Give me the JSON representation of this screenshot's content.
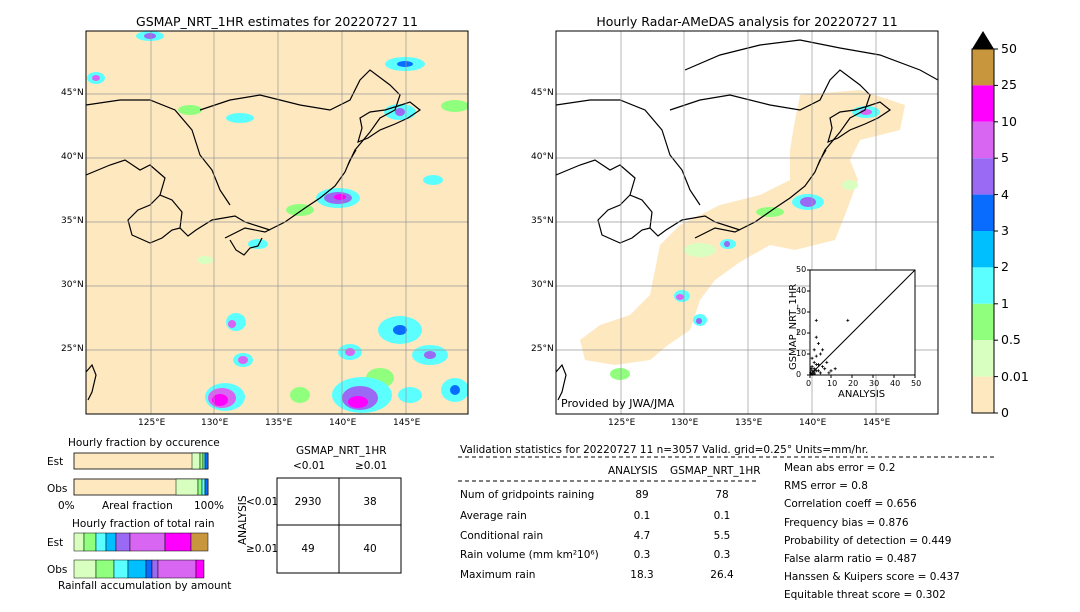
{
  "left_map": {
    "title": "GSMAP_NRT_1HR estimates for 20220727 11",
    "lat_labels": [
      "45°N",
      "40°N",
      "35°N",
      "30°N",
      "25°N"
    ],
    "lon_labels": [
      "125°E",
      "130°E",
      "135°E",
      "140°E",
      "145°E"
    ]
  },
  "right_map": {
    "title": "Hourly Radar-AMeDAS analysis for 20220727 11",
    "lat_labels": [
      "45°N",
      "40°N",
      "35°N",
      "30°N",
      "25°N"
    ],
    "lon_labels": [
      "125°E",
      "130°E",
      "135°E",
      "140°E",
      "145°E"
    ],
    "credit": "Provided by JWA/JMA"
  },
  "colorbar": {
    "ticks": [
      "50",
      "25",
      "10",
      "5",
      "4",
      "3",
      "2",
      "1",
      "0.5",
      "0.01",
      "0"
    ],
    "colors": [
      "#c8963c",
      "#ff00ff",
      "#d966f2",
      "#9b6af5",
      "#0a6cff",
      "#00bfff",
      "#5cffff",
      "#90ff7e",
      "#d8ffc0",
      "#fde8c0"
    ],
    "over_color": "#000000"
  },
  "inset_scatter": {
    "xlabel": "ANALYSIS",
    "ylabel": "GSMAP_NRT_1HR",
    "ticks": [
      "0",
      "10",
      "20",
      "30",
      "40",
      "50"
    ],
    "xlim": [
      0,
      50
    ],
    "ylim": [
      0,
      50
    ],
    "points": [
      [
        1,
        1
      ],
      [
        2,
        3
      ],
      [
        3,
        5
      ],
      [
        1,
        8
      ],
      [
        2,
        6
      ],
      [
        4,
        2
      ],
      [
        5,
        1
      ],
      [
        3,
        9
      ],
      [
        6,
        4
      ],
      [
        2,
        12
      ],
      [
        4,
        15
      ],
      [
        3,
        18
      ],
      [
        5,
        10
      ],
      [
        7,
        3
      ],
      [
        8,
        6
      ],
      [
        10,
        2
      ],
      [
        1,
        4
      ],
      [
        2,
        1
      ],
      [
        3,
        2
      ],
      [
        0.5,
        0.5
      ],
      [
        1,
        2
      ],
      [
        2,
        2
      ],
      [
        0.5,
        3
      ],
      [
        4,
        5
      ],
      [
        6,
        12
      ],
      [
        3,
        26
      ],
      [
        18,
        26
      ],
      [
        9,
        1
      ],
      [
        12,
        3
      ],
      [
        1,
        0.3
      ],
      [
        0.3,
        1
      ],
      [
        2,
        0.5
      ]
    ]
  },
  "occurrence": {
    "title": "Hourly fraction by occurence",
    "rows": [
      "Est",
      "Obs"
    ],
    "axis_labels": [
      "0%",
      "Areal fraction",
      "100%"
    ]
  },
  "total_rain": {
    "title": "Hourly fraction of total rain",
    "rows": [
      "Est",
      "Obs"
    ],
    "footer": "Rainfall accumulation by amount"
  },
  "contingency": {
    "title": "GSMAP_NRT_1HR",
    "col_labels": [
      "<0.01",
      "≥0.01"
    ],
    "row_labels": [
      "<0.01",
      "≥0.01"
    ],
    "side_label": "ANALYSIS",
    "cells": [
      "2930",
      "38",
      "49",
      "40"
    ]
  },
  "validation": {
    "header": "Validation statistics for 20220727 11  n=3057 Valid. grid=0.25° Units=mm/hr.",
    "col_analysis": "ANALYSIS",
    "col_gsmap": "GSMAP_NRT_1HR",
    "rows": [
      {
        "label": "Num of gridpoints raining",
        "a": "89",
        "g": "78"
      },
      {
        "label": "Average rain",
        "a": "0.1",
        "g": "0.1"
      },
      {
        "label": "Conditional rain",
        "a": "4.7",
        "g": "5.5"
      },
      {
        "label": "Rain volume (mm km²10⁶)",
        "a": "0.3",
        "g": "0.3"
      },
      {
        "label": "Maximum rain",
        "a": "18.3",
        "g": "26.4"
      }
    ],
    "scores": [
      "Mean abs error =    0.2",
      "RMS error =    0.8",
      "Correlation coeff =  0.656",
      "Frequency bias =  0.876",
      "Probability of detection =  0.449",
      "False alarm ratio =  0.487",
      "Hanssen & Kuipers score =  0.437",
      "Equitable threat score =  0.302"
    ]
  }
}
